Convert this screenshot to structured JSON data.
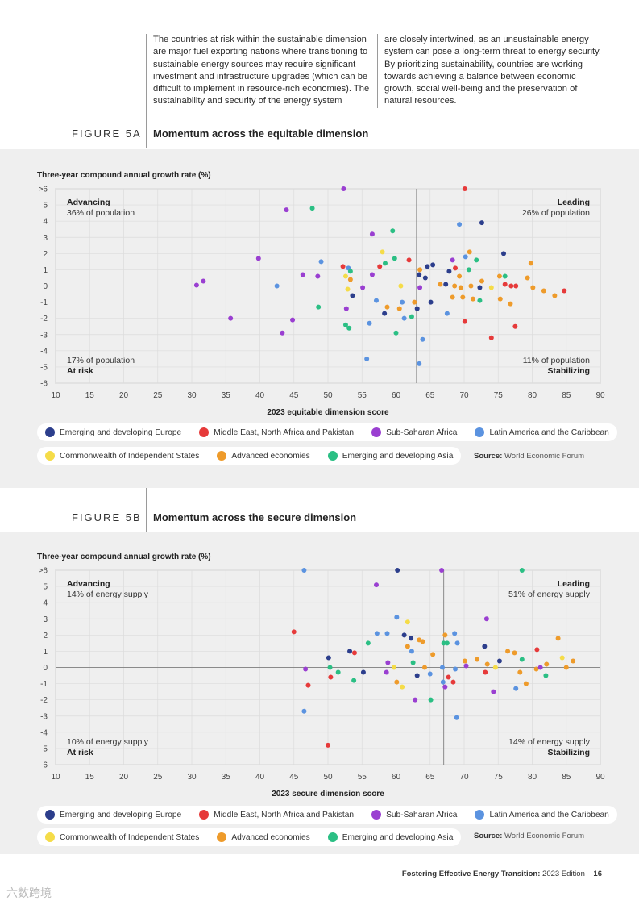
{
  "intro": {
    "col1": "The countries at risk within the sustainable dimension are major fuel exporting nations where transitioning to sustainable energy sources may require significant investment and infrastructure upgrades (which can be difficult to implement in resource-rich economies). The sustainability and security of the energy system",
    "col2": "are closely intertwined, as an unsustainable energy system can pose a long-term threat to energy security. By prioritizing sustainability, countries are working towards achieving a balance between economic growth, social well-being and the preservation of natural resources."
  },
  "legend": [
    {
      "label": "Emerging and developing Europe",
      "color": "#2c3e8c"
    },
    {
      "label": "Middle East, North Africa and Pakistan",
      "color": "#e63a3a"
    },
    {
      "label": "Sub-Saharan Africa",
      "color": "#9a3fd1"
    },
    {
      "label": "Latin America and the Caribbean",
      "color": "#5b93e0"
    },
    {
      "label": "Commonwealth of Independent States",
      "color": "#f5dc48"
    },
    {
      "label": "Advanced economies",
      "color": "#ee9b2b"
    },
    {
      "label": "Emerging and developing Asia",
      "color": "#2bbf84"
    }
  ],
  "source_label": "Source:",
  "source_text": "World Economic Forum",
  "footer": {
    "title": "Fostering Effective Energy Transition:",
    "edition": "2023 Edition",
    "page": "16"
  },
  "watermark": "六数跨境",
  "chart_data": [
    {
      "figure_label": "FIGURE 5A",
      "title": "Momentum across the equitable dimension",
      "type": "scatter",
      "ylabel": "Three-year compound annual growth rate (%)",
      "xlabel": "2023 equitable dimension score",
      "xlim": [
        10,
        90
      ],
      "ylim": [
        -6,
        6
      ],
      "x_ticks": [
        10,
        15,
        20,
        25,
        30,
        35,
        40,
        45,
        50,
        55,
        60,
        65,
        70,
        75,
        80,
        85,
        90
      ],
      "y_ticks": [
        ">6",
        "5",
        "4",
        "3",
        "2",
        "1",
        "0",
        "-1",
        "-2",
        "-3",
        "-4",
        "-5",
        "-6"
      ],
      "x_divider": 63,
      "y_divider": 0,
      "quadrants": {
        "tl": {
          "name": "Advancing",
          "share": "36% of population"
        },
        "tr": {
          "name": "Leading",
          "share": "26% of population"
        },
        "bl": {
          "name": "At risk",
          "share": "17% of population"
        },
        "br": {
          "name": "Stabilizing",
          "share": "11% of population"
        }
      },
      "points": [
        {
          "x": 52.3,
          "y": 6,
          "g": 2
        },
        {
          "x": 70.1,
          "y": 6,
          "g": 1
        },
        {
          "x": 43.9,
          "y": 4.7,
          "g": 2
        },
        {
          "x": 47.7,
          "y": 4.8,
          "g": 6
        },
        {
          "x": 69.3,
          "y": 3.8,
          "g": 3
        },
        {
          "x": 72.6,
          "y": 3.9,
          "g": 0
        },
        {
          "x": 56.5,
          "y": 3.2,
          "g": 2
        },
        {
          "x": 59.5,
          "y": 3.4,
          "g": 6
        },
        {
          "x": 58,
          "y": 2.1,
          "g": 4
        },
        {
          "x": 70.8,
          "y": 2.1,
          "g": 5
        },
        {
          "x": 75.8,
          "y": 2,
          "g": 0
        },
        {
          "x": 39.8,
          "y": 1.7,
          "g": 2
        },
        {
          "x": 49,
          "y": 1.5,
          "g": 3
        },
        {
          "x": 58.4,
          "y": 1.4,
          "g": 6
        },
        {
          "x": 59.8,
          "y": 1.7,
          "g": 6
        },
        {
          "x": 61.9,
          "y": 1.6,
          "g": 1
        },
        {
          "x": 64.6,
          "y": 1.2,
          "g": 0
        },
        {
          "x": 65.4,
          "y": 1.3,
          "g": 0
        },
        {
          "x": 68.3,
          "y": 1.6,
          "g": 2
        },
        {
          "x": 70.2,
          "y": 1.8,
          "g": 3
        },
        {
          "x": 71.8,
          "y": 1.6,
          "g": 6
        },
        {
          "x": 79.8,
          "y": 1.4,
          "g": 5
        },
        {
          "x": 52.2,
          "y": 1.2,
          "g": 1
        },
        {
          "x": 53,
          "y": 1.1,
          "g": 3
        },
        {
          "x": 53.3,
          "y": 0.9,
          "g": 6
        },
        {
          "x": 57.6,
          "y": 1.2,
          "g": 1
        },
        {
          "x": 63.5,
          "y": 1.0,
          "g": 5
        },
        {
          "x": 67.8,
          "y": 0.9,
          "g": 0
        },
        {
          "x": 68.7,
          "y": 1.1,
          "g": 1
        },
        {
          "x": 70.7,
          "y": 1.0,
          "g": 6
        },
        {
          "x": 46.3,
          "y": 0.7,
          "g": 2
        },
        {
          "x": 52.6,
          "y": 0.6,
          "g": 4
        },
        {
          "x": 53.3,
          "y": 0.4,
          "g": 5
        },
        {
          "x": 56.5,
          "y": 0.7,
          "g": 2
        },
        {
          "x": 63.4,
          "y": 0.7,
          "g": 0
        },
        {
          "x": 64.3,
          "y": 0.5,
          "g": 0
        },
        {
          "x": 69.3,
          "y": 0.6,
          "g": 5
        },
        {
          "x": 72.6,
          "y": 0.3,
          "g": 5
        },
        {
          "x": 75.2,
          "y": 0.6,
          "g": 5
        },
        {
          "x": 76,
          "y": 0.6,
          "g": 6
        },
        {
          "x": 79.3,
          "y": 0.5,
          "g": 5
        },
        {
          "x": 48.5,
          "y": 0.6,
          "g": 2
        },
        {
          "x": 31.7,
          "y": 0.3,
          "g": 2
        },
        {
          "x": 30.7,
          "y": 0.05,
          "g": 2
        },
        {
          "x": 42.5,
          "y": 0.0,
          "g": 3
        },
        {
          "x": 52.9,
          "y": -0.2,
          "g": 4
        },
        {
          "x": 55.1,
          "y": -0.1,
          "g": 2
        },
        {
          "x": 60.7,
          "y": 0.0,
          "g": 4
        },
        {
          "x": 63.5,
          "y": -0.1,
          "g": 2
        },
        {
          "x": 66.5,
          "y": 0.1,
          "g": 5
        },
        {
          "x": 67.3,
          "y": 0.1,
          "g": 0
        },
        {
          "x": 68.6,
          "y": 0.0,
          "g": 5
        },
        {
          "x": 69.5,
          "y": -0.1,
          "g": 5
        },
        {
          "x": 71,
          "y": 0.0,
          "g": 5
        },
        {
          "x": 72.3,
          "y": -0.1,
          "g": 0
        },
        {
          "x": 74,
          "y": -0.1,
          "g": 4
        },
        {
          "x": 76,
          "y": 0.1,
          "g": 1
        },
        {
          "x": 76.9,
          "y": 0.0,
          "g": 1
        },
        {
          "x": 77.6,
          "y": 0.0,
          "g": 1
        },
        {
          "x": 80.1,
          "y": -0.1,
          "g": 5
        },
        {
          "x": 81.7,
          "y": -0.3,
          "g": 5
        },
        {
          "x": 83.3,
          "y": -0.6,
          "g": 5
        },
        {
          "x": 84.7,
          "y": -0.3,
          "g": 1
        },
        {
          "x": 53.6,
          "y": -0.6,
          "g": 0
        },
        {
          "x": 57.1,
          "y": -0.9,
          "g": 3
        },
        {
          "x": 58.7,
          "y": -1.3,
          "g": 5
        },
        {
          "x": 60.9,
          "y": -1.0,
          "g": 3
        },
        {
          "x": 62.7,
          "y": -1.0,
          "g": 5
        },
        {
          "x": 63.1,
          "y": -1.4,
          "g": 0
        },
        {
          "x": 65.1,
          "y": -1.0,
          "g": 0
        },
        {
          "x": 68.3,
          "y": -0.7,
          "g": 5
        },
        {
          "x": 69.8,
          "y": -0.7,
          "g": 5
        },
        {
          "x": 71.3,
          "y": -0.8,
          "g": 5
        },
        {
          "x": 72.3,
          "y": -0.9,
          "g": 6
        },
        {
          "x": 75.3,
          "y": -0.8,
          "g": 5
        },
        {
          "x": 76.8,
          "y": -1.1,
          "g": 5
        },
        {
          "x": 48.6,
          "y": -1.3,
          "g": 6
        },
        {
          "x": 52.7,
          "y": -1.4,
          "g": 2
        },
        {
          "x": 60.5,
          "y": -1.4,
          "g": 5
        },
        {
          "x": 58.3,
          "y": -1.7,
          "g": 0
        },
        {
          "x": 62.3,
          "y": -1.9,
          "g": 6
        },
        {
          "x": 67.5,
          "y": -1.7,
          "g": 3
        },
        {
          "x": 35.7,
          "y": -2.0,
          "g": 2
        },
        {
          "x": 44.8,
          "y": -2.1,
          "g": 2
        },
        {
          "x": 56.1,
          "y": -2.3,
          "g": 3
        },
        {
          "x": 61.2,
          "y": -2.0,
          "g": 3
        },
        {
          "x": 70.1,
          "y": -2.2,
          "g": 1
        },
        {
          "x": 52.6,
          "y": -2.4,
          "g": 6
        },
        {
          "x": 53.1,
          "y": -2.6,
          "g": 6
        },
        {
          "x": 60.0,
          "y": -2.9,
          "g": 6
        },
        {
          "x": 43.3,
          "y": -2.9,
          "g": 2
        },
        {
          "x": 77.5,
          "y": -2.5,
          "g": 1
        },
        {
          "x": 74.0,
          "y": -3.2,
          "g": 1
        },
        {
          "x": 63.9,
          "y": -3.3,
          "g": 3
        },
        {
          "x": 55.7,
          "y": -4.5,
          "g": 3
        },
        {
          "x": 63.4,
          "y": -4.8,
          "g": 3
        }
      ]
    },
    {
      "figure_label": "FIGURE 5B",
      "title": "Momentum across the secure dimension",
      "type": "scatter",
      "ylabel": "Three-year compound annual growth rate (%)",
      "xlabel": "2023 secure dimension score",
      "xlim": [
        10,
        90
      ],
      "ylim": [
        -6,
        6
      ],
      "x_ticks": [
        10,
        15,
        20,
        25,
        30,
        35,
        40,
        45,
        50,
        55,
        60,
        65,
        70,
        75,
        80,
        85,
        90
      ],
      "y_ticks": [
        ">6",
        "5",
        "4",
        "3",
        "2",
        "1",
        "0",
        "-1",
        "-2",
        "-3",
        "-4",
        "-5",
        "-6"
      ],
      "x_divider": 67,
      "y_divider": 0,
      "quadrants": {
        "tl": {
          "name": "Advancing",
          "share": "14% of energy supply"
        },
        "tr": {
          "name": "Leading",
          "share": "51% of energy supply"
        },
        "bl": {
          "name": "At risk",
          "share": "10% of energy supply"
        },
        "br": {
          "name": "Stabilizing",
          "share": "14% of energy supply"
        }
      },
      "points": [
        {
          "x": 46.5,
          "y": 6,
          "g": 3
        },
        {
          "x": 60.2,
          "y": 6,
          "g": 0
        },
        {
          "x": 66.7,
          "y": 6,
          "g": 2
        },
        {
          "x": 78.5,
          "y": 6,
          "g": 6
        },
        {
          "x": 57.1,
          "y": 5.1,
          "g": 2
        },
        {
          "x": 60.1,
          "y": 3.1,
          "g": 3
        },
        {
          "x": 61.7,
          "y": 2.8,
          "g": 4
        },
        {
          "x": 73.3,
          "y": 3.0,
          "g": 2
        },
        {
          "x": 45,
          "y": 2.2,
          "g": 1
        },
        {
          "x": 57.2,
          "y": 2.1,
          "g": 3
        },
        {
          "x": 58.7,
          "y": 2.1,
          "g": 3
        },
        {
          "x": 61.2,
          "y": 2.0,
          "g": 0
        },
        {
          "x": 62.2,
          "y": 1.8,
          "g": 0
        },
        {
          "x": 63.9,
          "y": 1.6,
          "g": 5
        },
        {
          "x": 67.2,
          "y": 2.0,
          "g": 5
        },
        {
          "x": 68.6,
          "y": 2.1,
          "g": 3
        },
        {
          "x": 83.8,
          "y": 1.8,
          "g": 5
        },
        {
          "x": 55.9,
          "y": 1.5,
          "g": 6
        },
        {
          "x": 61.7,
          "y": 1.3,
          "g": 5
        },
        {
          "x": 63.4,
          "y": 1.7,
          "g": 5
        },
        {
          "x": 67,
          "y": 1.5,
          "g": 6
        },
        {
          "x": 67.5,
          "y": 1.5,
          "g": 6
        },
        {
          "x": 69.0,
          "y": 1.5,
          "g": 3
        },
        {
          "x": 73,
          "y": 1.3,
          "g": 0
        },
        {
          "x": 53.2,
          "y": 1.0,
          "g": 0
        },
        {
          "x": 53.9,
          "y": 0.9,
          "g": 1
        },
        {
          "x": 62.3,
          "y": 1.0,
          "g": 3
        },
        {
          "x": 65.4,
          "y": 0.8,
          "g": 5
        },
        {
          "x": 76.4,
          "y": 1.0,
          "g": 5
        },
        {
          "x": 77.4,
          "y": 0.9,
          "g": 5
        },
        {
          "x": 80.7,
          "y": 1.1,
          "g": 1
        },
        {
          "x": 50.1,
          "y": 0.6,
          "g": 0
        },
        {
          "x": 58.8,
          "y": 0.3,
          "g": 2
        },
        {
          "x": 62.5,
          "y": 0.3,
          "g": 6
        },
        {
          "x": 70.1,
          "y": 0.4,
          "g": 5
        },
        {
          "x": 71.9,
          "y": 0.5,
          "g": 5
        },
        {
          "x": 73.4,
          "y": 0.2,
          "g": 5
        },
        {
          "x": 75.2,
          "y": 0.4,
          "g": 0
        },
        {
          "x": 78.5,
          "y": 0.5,
          "g": 6
        },
        {
          "x": 82.1,
          "y": 0.2,
          "g": 5
        },
        {
          "x": 84.4,
          "y": 0.6,
          "g": 4
        },
        {
          "x": 86.0,
          "y": 0.4,
          "g": 5
        },
        {
          "x": 50.3,
          "y": 0.0,
          "g": 6
        },
        {
          "x": 59.7,
          "y": 0.0,
          "g": 4
        },
        {
          "x": 64.2,
          "y": 0.0,
          "g": 5
        },
        {
          "x": 66.8,
          "y": 0.0,
          "g": 3
        },
        {
          "x": 68.7,
          "y": -0.1,
          "g": 3
        },
        {
          "x": 70.3,
          "y": 0.1,
          "g": 2
        },
        {
          "x": 74.6,
          "y": 0.0,
          "g": 4
        },
        {
          "x": 80.6,
          "y": -0.1,
          "g": 5
        },
        {
          "x": 81.2,
          "y": 0.0,
          "g": 2
        },
        {
          "x": 85.0,
          "y": 0.0,
          "g": 5
        },
        {
          "x": 46.7,
          "y": -0.1,
          "g": 2
        },
        {
          "x": 51.5,
          "y": -0.3,
          "g": 6
        },
        {
          "x": 55.2,
          "y": -0.3,
          "g": 0
        },
        {
          "x": 58.6,
          "y": -0.3,
          "g": 2
        },
        {
          "x": 63.1,
          "y": -0.5,
          "g": 0
        },
        {
          "x": 65,
          "y": -0.4,
          "g": 3
        },
        {
          "x": 67.7,
          "y": -0.6,
          "g": 1
        },
        {
          "x": 73.1,
          "y": -0.3,
          "g": 1
        },
        {
          "x": 78.2,
          "y": -0.3,
          "g": 5
        },
        {
          "x": 82.0,
          "y": -0.5,
          "g": 6
        },
        {
          "x": 50.4,
          "y": -0.6,
          "g": 1
        },
        {
          "x": 53.8,
          "y": -0.8,
          "g": 6
        },
        {
          "x": 60.1,
          "y": -0.9,
          "g": 5
        },
        {
          "x": 66.9,
          "y": -0.9,
          "g": 3
        },
        {
          "x": 68.4,
          "y": -0.9,
          "g": 1
        },
        {
          "x": 47.1,
          "y": -1.1,
          "g": 1
        },
        {
          "x": 60.9,
          "y": -1.2,
          "g": 4
        },
        {
          "x": 67.2,
          "y": -1.2,
          "g": 2
        },
        {
          "x": 74.3,
          "y": -1.5,
          "g": 2
        },
        {
          "x": 77.6,
          "y": -1.3,
          "g": 3
        },
        {
          "x": 79.1,
          "y": -1.0,
          "g": 5
        },
        {
          "x": 62.8,
          "y": -2.0,
          "g": 2
        },
        {
          "x": 65.1,
          "y": -2.0,
          "g": 6
        },
        {
          "x": 46.5,
          "y": -2.7,
          "g": 3
        },
        {
          "x": 68.9,
          "y": -3.1,
          "g": 3
        },
        {
          "x": 50.0,
          "y": -4.8,
          "g": 1
        }
      ]
    }
  ]
}
